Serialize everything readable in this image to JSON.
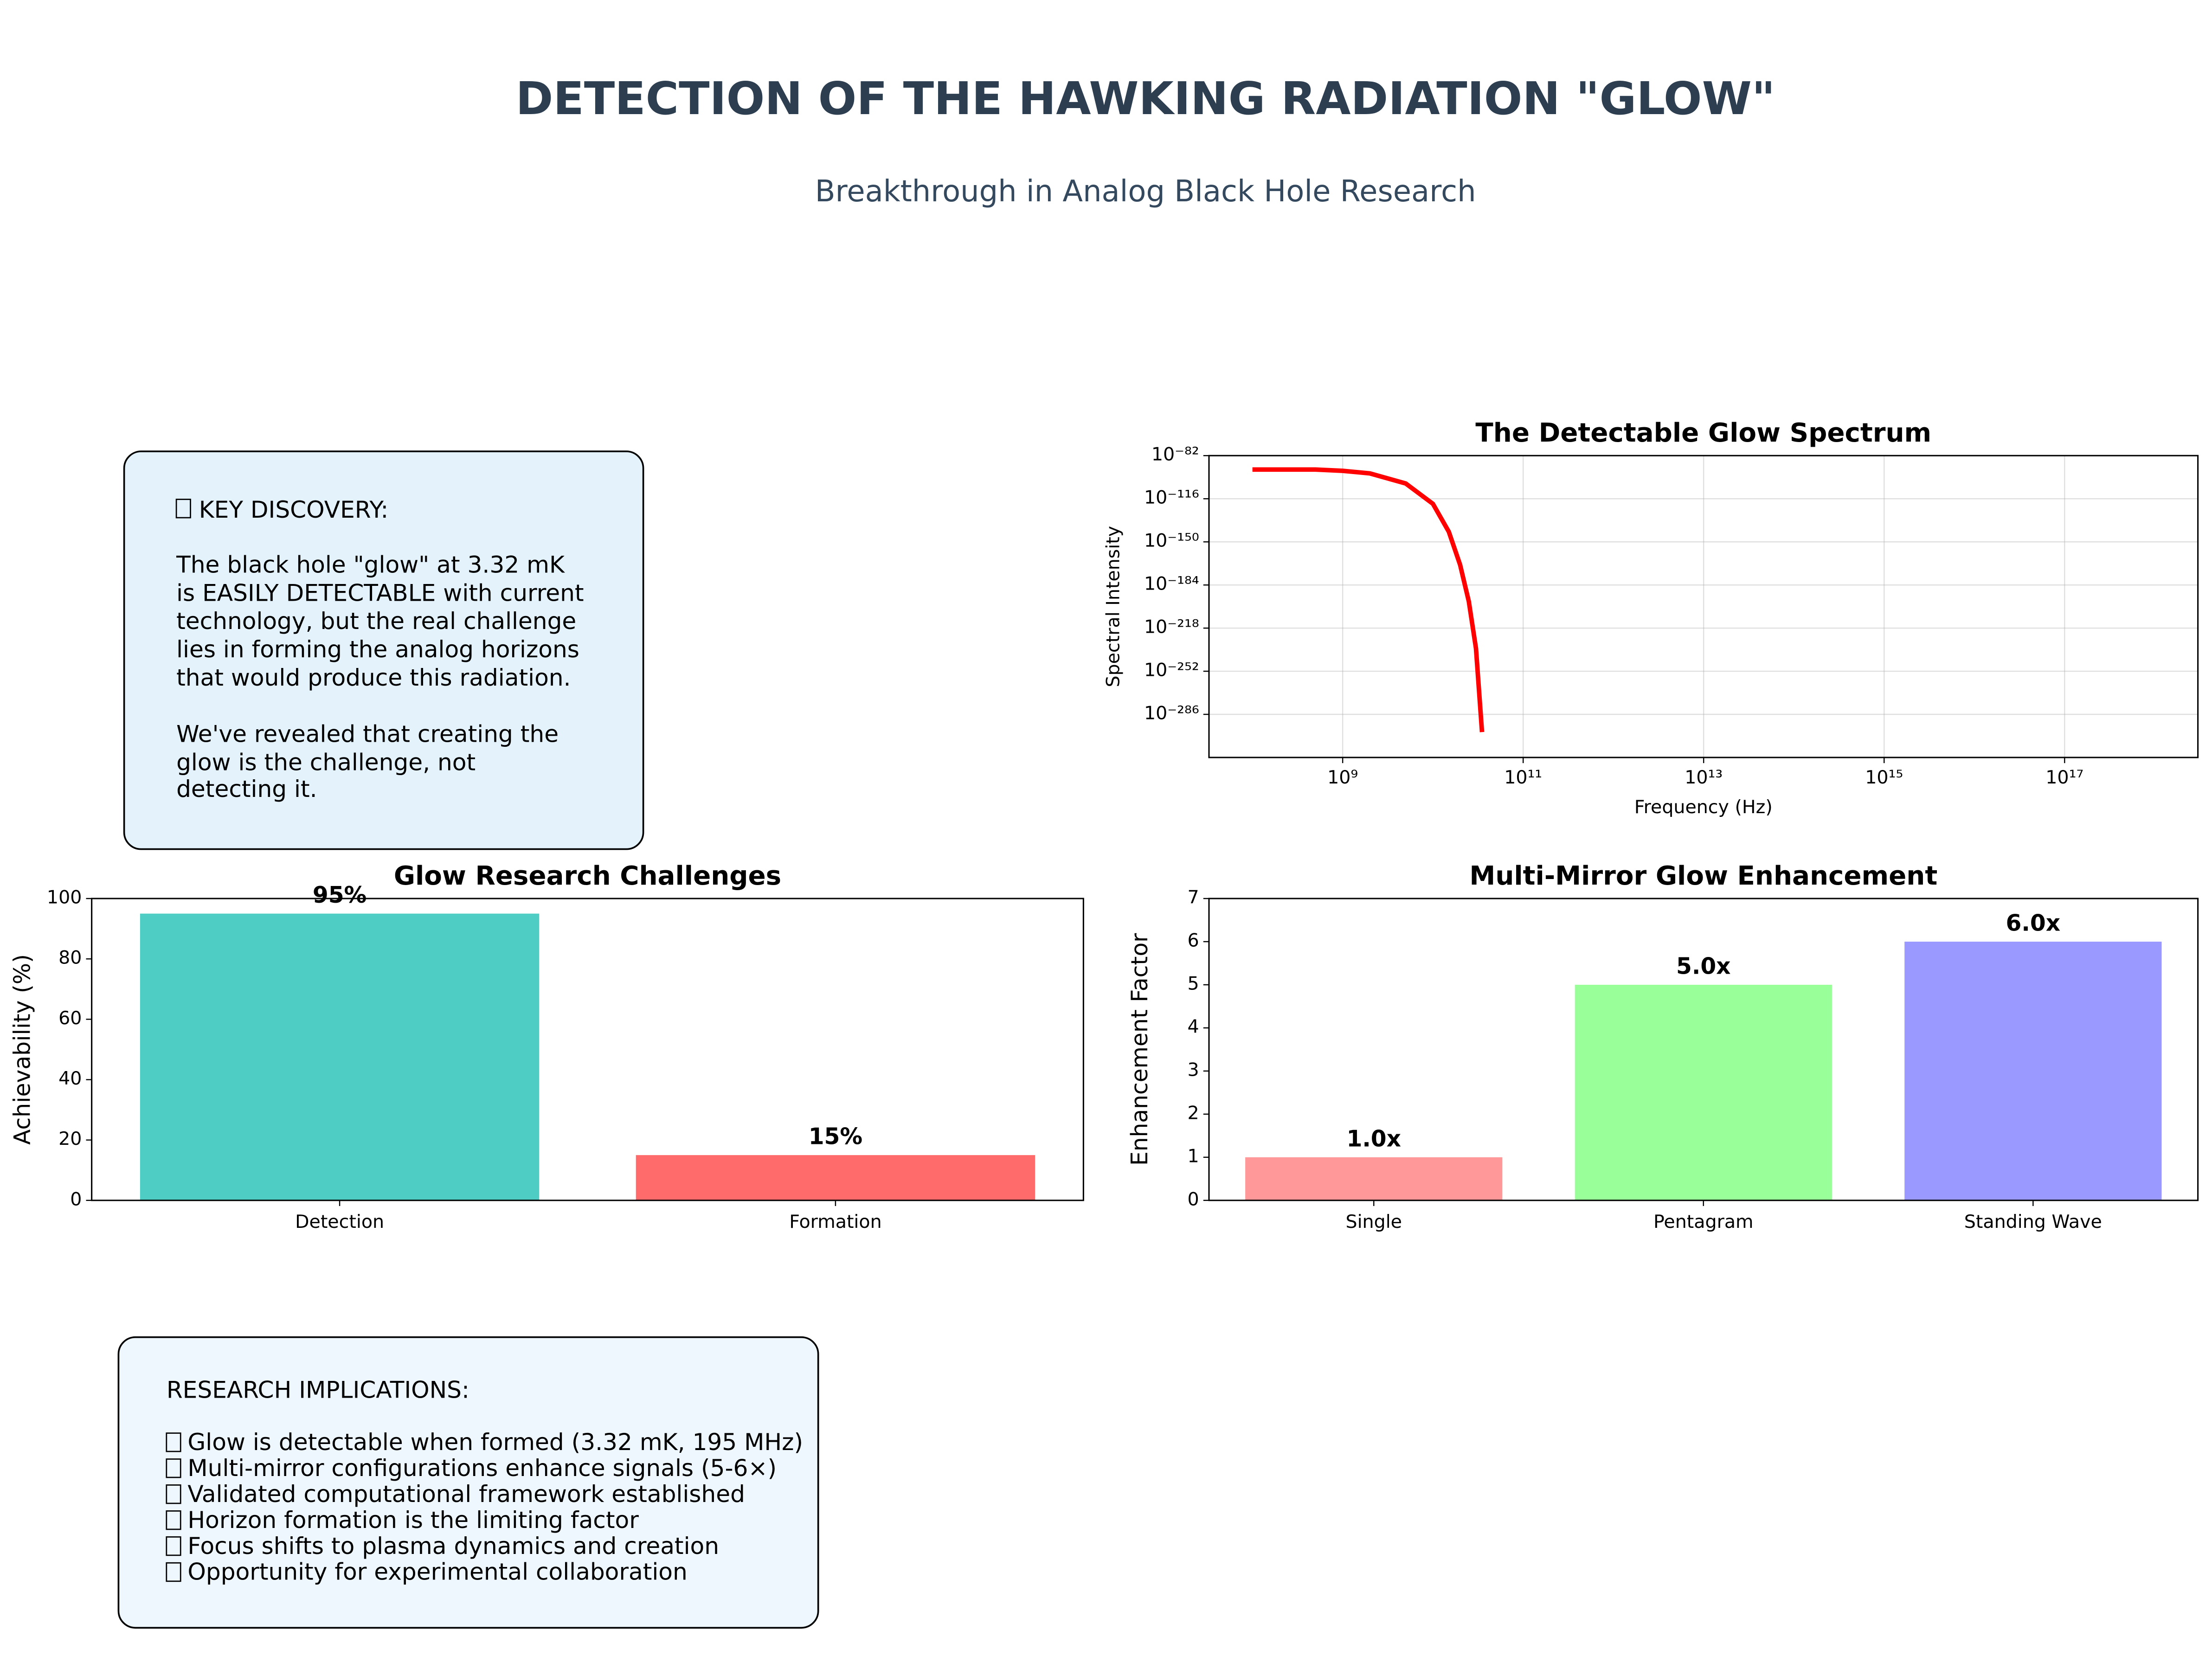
{
  "title": "DETECTION OF THE HAWKING RADIATION \"GLOW\"",
  "subtitle": "Breakthrough in Analog Black Hole Research",
  "key_box": {
    "lines": [
      "KEY DISCOVERY:",
      "The black hole \"glow\" at 3.32 mK",
      "is EASILY DETECTABLE with current",
      "technology, but the real challenge",
      "lies in forming the analog horizons",
      "that would produce this radiation.",
      "We've revealed that creating the",
      "glow is the challenge, not",
      "detecting it."
    ]
  },
  "implications_box": {
    "heading": "RESEARCH IMPLICATIONS:",
    "bullets": [
      "Glow is detectable when formed (3.32 mK, 195 MHz)",
      "Multi-mirror configurations enhance signals (5-6×)",
      "Validated computational framework established",
      "Horizon formation is the limiting factor",
      "Focus shifts to plasma dynamics and creation",
      "Opportunity for experimental collaboration"
    ]
  },
  "chart_data": [
    {
      "type": "line",
      "title": "The Detectable Glow Spectrum",
      "x_label": "Frequency (Hz)",
      "y_label": "Spectral Intensity",
      "xscale": "log",
      "yscale": "log",
      "grid": true,
      "x": [
        100000000.0,
        500000000.0,
        1000000000.0,
        2000000000.0,
        5000000000.0,
        10000000000.0,
        15000000000.0,
        20000000000.0,
        25000000000.0,
        30000000000.0,
        35000000000.0
      ],
      "series": [
        {
          "color": "#ff0000",
          "values": [
            1e-93,
            1e-93,
            1e-94,
            1e-96,
            1e-104,
            1e-120,
            1e-142,
            1e-168,
            1e-197,
            1e-234,
            1e-300
          ]
        }
      ],
      "xlim": [
        33000000.0,
        3e+18
      ],
      "ylim": [
        1e-320,
        1e-82
      ],
      "xticks": [
        {
          "value": 1000000000.0,
          "label": "10⁹"
        },
        {
          "value": 100000000000.0,
          "label": "10¹¹"
        },
        {
          "value": 10000000000000.0,
          "label": "10¹³"
        },
        {
          "value": 1000000000000000.0,
          "label": "10¹⁵"
        },
        {
          "value": 1e+17,
          "label": "10¹⁷"
        }
      ],
      "yticks": [
        {
          "value": 1e-82,
          "label": "10⁻⁸²"
        },
        {
          "value": 1e-116,
          "label": "10⁻¹¹⁶"
        },
        {
          "value": 1e-150,
          "label": "10⁻¹⁵⁰"
        },
        {
          "value": 1e-184,
          "label": "10⁻¹⁸⁴"
        },
        {
          "value": 1e-218,
          "label": "10⁻²¹⁸"
        },
        {
          "value": 1e-252,
          "label": "10⁻²⁵²"
        },
        {
          "value": 1e-286,
          "label": "10⁻²⁸⁶"
        }
      ]
    },
    {
      "type": "bar",
      "title": "Glow Research Challenges",
      "y_label": "Achievability (%)",
      "categories": [
        "Detection",
        "Formation"
      ],
      "values": [
        95,
        15
      ],
      "value_labels": [
        "95%",
        "15%"
      ],
      "colors": [
        "#4ecdc4",
        "#ff6b6b"
      ],
      "ylim": [
        0,
        100
      ],
      "yticks": [
        0,
        20,
        40,
        60,
        80,
        100
      ]
    },
    {
      "type": "bar",
      "title": "Multi-Mirror Glow Enhancement",
      "y_label": "Enhancement Factor",
      "categories": [
        "Single",
        "Pentagram",
        "Standing Wave"
      ],
      "values": [
        1.0,
        5.0,
        6.0
      ],
      "value_labels": [
        "1.0x",
        "5.0x",
        "6.0x"
      ],
      "colors": [
        "#ff9999",
        "#99ff99",
        "#9999ff"
      ],
      "ylim": [
        0,
        7
      ],
      "yticks": [
        0,
        1,
        2,
        3,
        4,
        5,
        6,
        7
      ]
    }
  ]
}
